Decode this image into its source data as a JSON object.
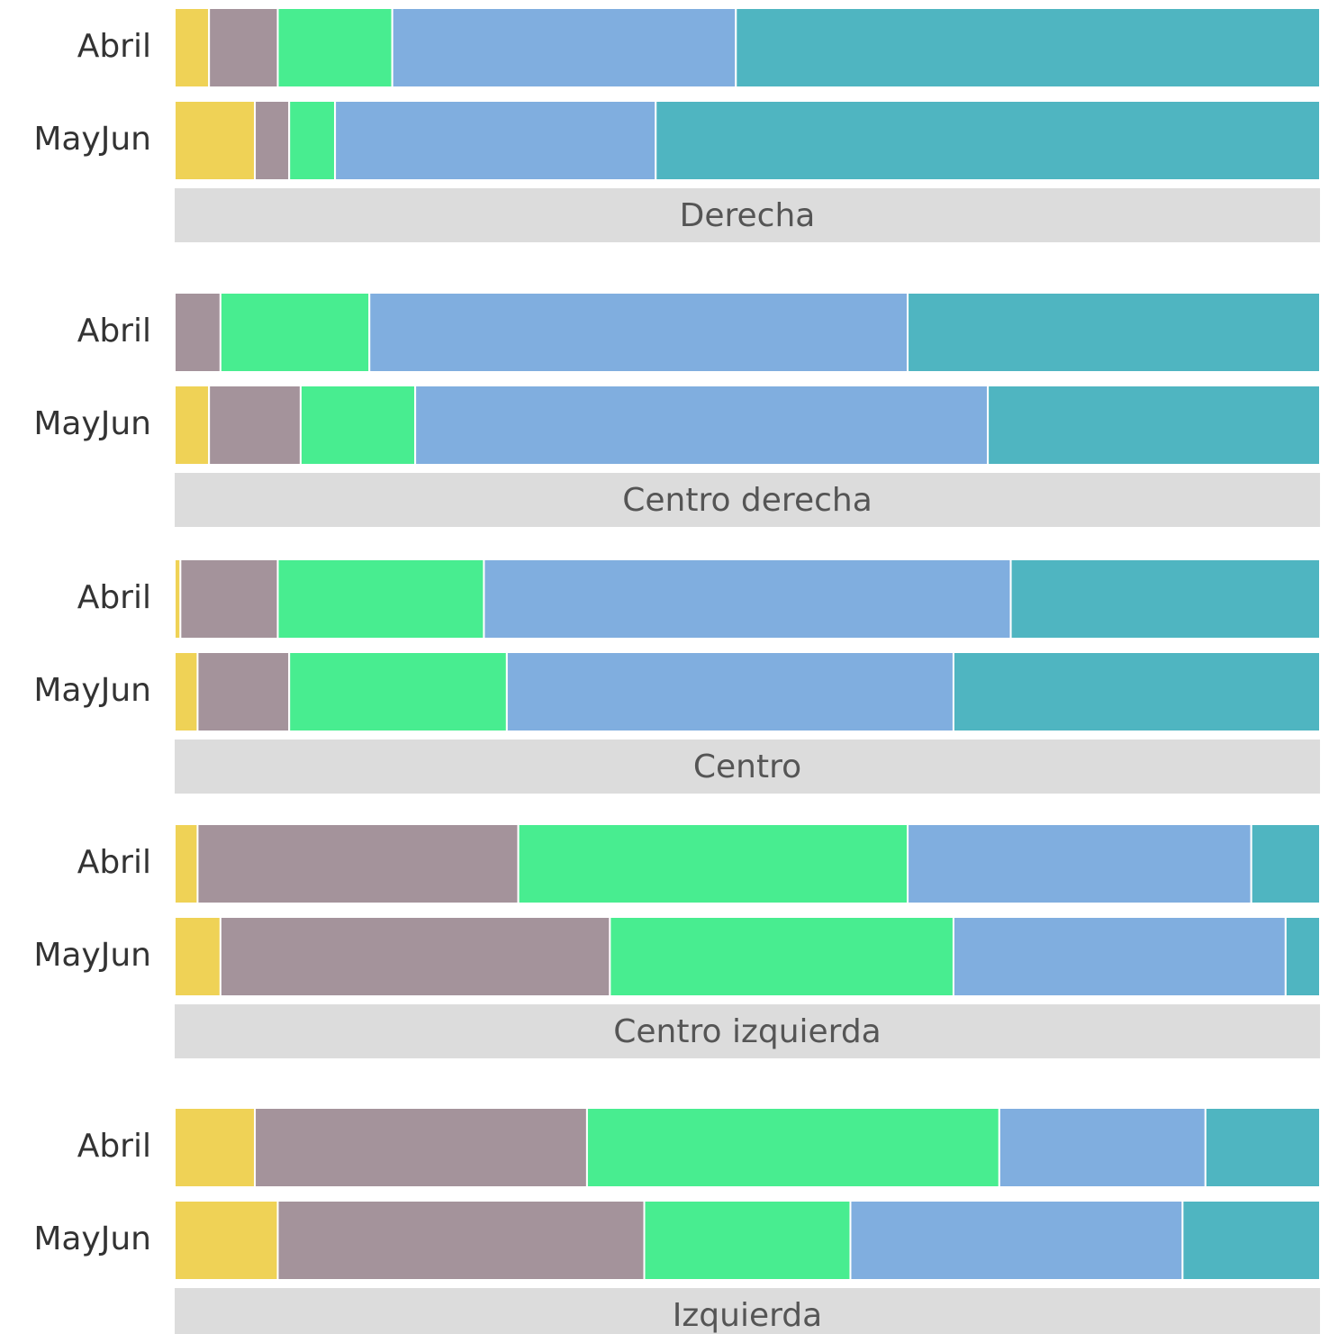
{
  "chart_data": [
    {
      "type": "bar",
      "orientation": "horizontal",
      "stacked": true,
      "title": "Derecha",
      "categories": [
        "Abril",
        "MayJun"
      ],
      "xlim": [
        0,
        100
      ],
      "series": [
        {
          "color": "#efd256",
          "values": [
            3,
            7
          ]
        },
        {
          "color": "#a4939b",
          "values": [
            6,
            3
          ]
        },
        {
          "color": "#48ed90",
          "values": [
            10,
            4
          ]
        },
        {
          "color": "#80aedf",
          "values": [
            30,
            28
          ]
        },
        {
          "color": "#4fb5c1",
          "values": [
            51,
            58
          ]
        }
      ]
    },
    {
      "type": "bar",
      "orientation": "horizontal",
      "stacked": true,
      "title": "Centro derecha",
      "categories": [
        "Abril",
        "MayJun"
      ],
      "xlim": [
        0,
        100
      ],
      "series": [
        {
          "color": "#efd256",
          "values": [
            0,
            3
          ]
        },
        {
          "color": "#a4939b",
          "values": [
            4,
            8
          ]
        },
        {
          "color": "#48ed90",
          "values": [
            13,
            10
          ]
        },
        {
          "color": "#80aedf",
          "values": [
            47,
            50
          ]
        },
        {
          "color": "#4fb5c1",
          "values": [
            36,
            29
          ]
        }
      ]
    },
    {
      "type": "bar",
      "orientation": "horizontal",
      "stacked": true,
      "title": "Centro",
      "categories": [
        "Abril",
        "MayJun"
      ],
      "xlim": [
        0,
        100
      ],
      "series": [
        {
          "color": "#efd256",
          "values": [
            0.5,
            2
          ]
        },
        {
          "color": "#a4939b",
          "values": [
            8.5,
            8
          ]
        },
        {
          "color": "#48ed90",
          "values": [
            18,
            19
          ]
        },
        {
          "color": "#80aedf",
          "values": [
            46,
            39
          ]
        },
        {
          "color": "#4fb5c1",
          "values": [
            27,
            32
          ]
        }
      ]
    },
    {
      "type": "bar",
      "orientation": "horizontal",
      "stacked": true,
      "title": "Centro izquierda",
      "categories": [
        "Abril",
        "MayJun"
      ],
      "xlim": [
        0,
        100
      ],
      "series": [
        {
          "color": "#efd256",
          "values": [
            2,
            4
          ]
        },
        {
          "color": "#a4939b",
          "values": [
            28,
            34
          ]
        },
        {
          "color": "#48ed90",
          "values": [
            34,
            30
          ]
        },
        {
          "color": "#80aedf",
          "values": [
            30,
            29
          ]
        },
        {
          "color": "#4fb5c1",
          "values": [
            6,
            3
          ]
        }
      ]
    },
    {
      "type": "bar",
      "orientation": "horizontal",
      "stacked": true,
      "title": "Izquierda",
      "categories": [
        "Abril",
        "MayJun"
      ],
      "xlim": [
        0,
        100
      ],
      "series": [
        {
          "color": "#efd256",
          "values": [
            7,
            9
          ]
        },
        {
          "color": "#a4939b",
          "values": [
            29,
            32
          ]
        },
        {
          "color": "#48ed90",
          "values": [
            36,
            18
          ]
        },
        {
          "color": "#80aedf",
          "values": [
            18,
            29
          ]
        },
        {
          "color": "#4fb5c1",
          "values": [
            10,
            12
          ]
        }
      ]
    }
  ]
}
